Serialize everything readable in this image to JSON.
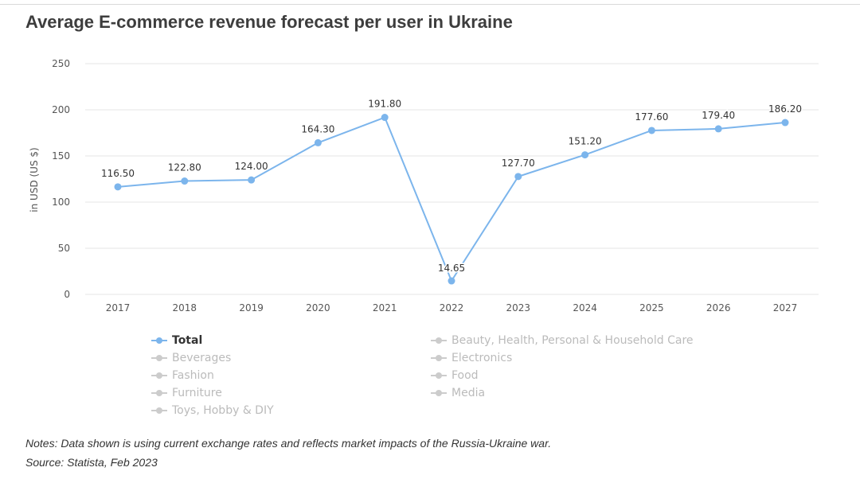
{
  "title": "Average E-commerce revenue forecast per user in Ukraine",
  "notes": {
    "line1": "Notes: Data shown is using current exchange rates and reflects market impacts of the Russia-Ukraine war.",
    "line2": "Source: Statista, Feb 2023"
  },
  "colors": {
    "active": "#7cb5ec",
    "inactive": "#cccccc",
    "grid": "#e6e6e6",
    "axis_text": "#555555",
    "label_text": "#333333"
  },
  "legend": {
    "items": [
      {
        "label": "Total",
        "active": true
      },
      {
        "label": "Beverages",
        "active": false
      },
      {
        "label": "Fashion",
        "active": false
      },
      {
        "label": "Furniture",
        "active": false
      },
      {
        "label": "Toys, Hobby & DIY",
        "active": false
      },
      {
        "label": "Beauty, Health, Personal & Household Care",
        "active": false
      },
      {
        "label": "Electronics",
        "active": false
      },
      {
        "label": "Food",
        "active": false
      },
      {
        "label": "Media",
        "active": false
      }
    ]
  },
  "chart_data": {
    "type": "line",
    "title": "Average E-commerce revenue forecast per user in Ukraine",
    "xlabel": "",
    "ylabel": "in USD (US $)",
    "categories": [
      "2017",
      "2018",
      "2019",
      "2020",
      "2021",
      "2022",
      "2023",
      "2024",
      "2025",
      "2026",
      "2027"
    ],
    "series": [
      {
        "name": "Total",
        "values": [
          116.5,
          122.8,
          124.0,
          164.3,
          191.8,
          14.65,
          127.7,
          151.2,
          177.6,
          179.4,
          186.2
        ],
        "labels": [
          "116.50",
          "122.80",
          "124.00",
          "164.30",
          "191.80",
          "14.65",
          "127.70",
          "151.20",
          "177.60",
          "179.40",
          "186.20"
        ]
      }
    ],
    "yticks": [
      "0",
      "50",
      "100",
      "150",
      "200",
      "250"
    ],
    "ylim": [
      0,
      250
    ],
    "grid": true,
    "legend_position": "bottom"
  }
}
